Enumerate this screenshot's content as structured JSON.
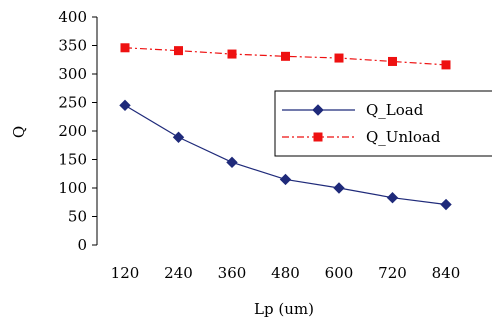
{
  "chart_data": {
    "type": "line",
    "title": "",
    "xlabel": "Lp (um)",
    "ylabel": "Q",
    "categories": [
      "120",
      "240",
      "360",
      "480",
      "600",
      "720",
      "840"
    ],
    "ylim": [
      0,
      400
    ],
    "yticks": [
      "0",
      "50",
      "100",
      "150",
      "200",
      "250",
      "300",
      "350",
      "400"
    ],
    "grid": false,
    "legend_position": "right",
    "series": [
      {
        "name": "Q_Load",
        "values": [
          245,
          189,
          145,
          115,
          100,
          83,
          71
        ],
        "color": "#1f2a7a",
        "marker": "diamond",
        "line_style": "solid"
      },
      {
        "name": "Q_Unload",
        "values": [
          346,
          341,
          335,
          331,
          328,
          322,
          316
        ],
        "color": "#ee1111",
        "marker": "square",
        "line_style": "dash-dot"
      }
    ]
  }
}
